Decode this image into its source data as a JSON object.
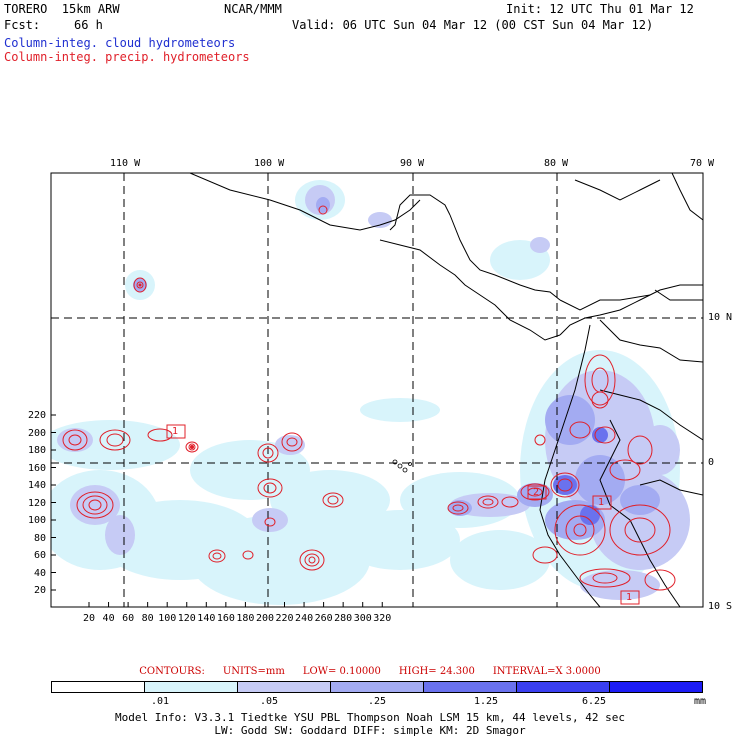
{
  "header": {
    "model": "TORERO  15km ARW",
    "org": "NCAR/MMM",
    "init": "Init: 12 UTC Thu 01 Mar 12",
    "fcst_label": "Fcst:",
    "fcst_value": "66 h",
    "valid": "Valid: 06 UTC Sun 04 Mar 12 (00 CST Sun 04 Mar 12)",
    "field_cloud": "Column-integ. cloud hydrometeors",
    "field_precip": "Column-integ. precip. hydrometeors"
  },
  "colors": {
    "cloud_text": "#1f2fd0",
    "precip_text": "#e0202a",
    "shade": [
      "#ffffff",
      "#d8f4fb",
      "#c6cbf5",
      "#a3abf2",
      "#6a72ee",
      "#3a3ff0",
      "#1c1cf5"
    ]
  },
  "map": {
    "lon_labels": [
      "110 W",
      "100 W",
      "90 W",
      "80 W",
      "70 W"
    ],
    "lat_labels": [
      "10 N",
      "0",
      "10 S"
    ],
    "y_ticks": [
      "220",
      "200",
      "180",
      "160",
      "140",
      "120",
      "100",
      "80",
      "60",
      "40",
      "20"
    ],
    "x_ticks": [
      "20",
      "40",
      "60",
      "80",
      "100",
      "120",
      "140",
      "160",
      "180",
      "200",
      "220",
      "240",
      "260",
      "280",
      "300",
      "320"
    ],
    "box_labels": [
      "1",
      "2",
      "1",
      "1"
    ]
  },
  "contours": {
    "title": "CONTOURS:",
    "units": "UNITS=mm",
    "low": "LOW= 0.10000",
    "high": "HIGH=  24.300",
    "interval": "INTERVAL=X  3.0000"
  },
  "legend": {
    "labels": [
      ".01",
      ".05",
      ".25",
      "1.25",
      "6.25"
    ],
    "unit": "mm"
  },
  "footer": {
    "line1": "Model Info: V3.3.1    Tiedtke YSU PBL  Thompson    Noah LSM  15 km,   44 levels,   42 sec",
    "line2": "LW: Godd SW: Goddard DIFF: simple KM: 2D Smagor"
  }
}
